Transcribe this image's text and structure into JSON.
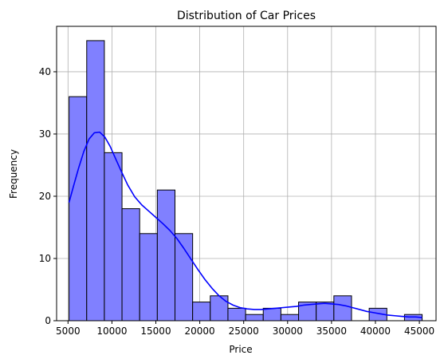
{
  "chart_data": {
    "type": "bar",
    "subtype": "histogram-with-kde",
    "title": "Distribution of Car Prices",
    "xlabel": "Price",
    "ylabel": "Frequency",
    "xlim": [
      3700,
      46900
    ],
    "ylim": [
      0,
      47.3
    ],
    "xticks": [
      5000,
      10000,
      15000,
      20000,
      25000,
      30000,
      35000,
      40000,
      45000
    ],
    "yticks": [
      0,
      10,
      20,
      30,
      40
    ],
    "grid": true,
    "bin_start": 5118,
    "bin_width": 2010,
    "values": [
      36,
      45,
      27,
      18,
      14,
      21,
      14,
      3,
      4,
      2,
      1,
      2,
      1,
      3,
      3,
      4,
      0,
      2,
      0,
      1
    ],
    "bar_color": "#8080ff",
    "bar_edge_color": "#000000",
    "kde_color": "#0000ff",
    "kde": {
      "x": [
        5118,
        5600,
        6200,
        6800,
        7400,
        8000,
        8600,
        9200,
        9800,
        10400,
        11000,
        11800,
        12600,
        13400,
        14200,
        15000,
        15800,
        16600,
        17400,
        18200,
        19000,
        19800,
        20600,
        21400,
        22200,
        23000,
        23800,
        24600,
        25400,
        26200,
        27000,
        27800,
        28600,
        29400,
        30200,
        31000,
        31800,
        32600,
        33400,
        34200,
        35000,
        35800,
        36600,
        37400,
        38200,
        39000,
        39800,
        40600,
        41400,
        42200,
        43000,
        43800,
        44600,
        45318
      ],
      "y": [
        19,
        21.5,
        24.5,
        27.2,
        29.2,
        30.2,
        30.3,
        29.5,
        28,
        26.1,
        24.2,
        21.8,
        19.9,
        18.6,
        17.6,
        16.6,
        15.6,
        14.5,
        13.2,
        11.6,
        9.9,
        8.2,
        6.6,
        5.2,
        4.0,
        3.1,
        2.5,
        2.1,
        1.9,
        1.8,
        1.8,
        1.9,
        2.0,
        2.1,
        2.2,
        2.3,
        2.5,
        2.6,
        2.7,
        2.8,
        2.7,
        2.6,
        2.4,
        2.1,
        1.8,
        1.5,
        1.3,
        1.1,
        0.9,
        0.8,
        0.7,
        0.6,
        0.6,
        0.5
      ]
    }
  }
}
